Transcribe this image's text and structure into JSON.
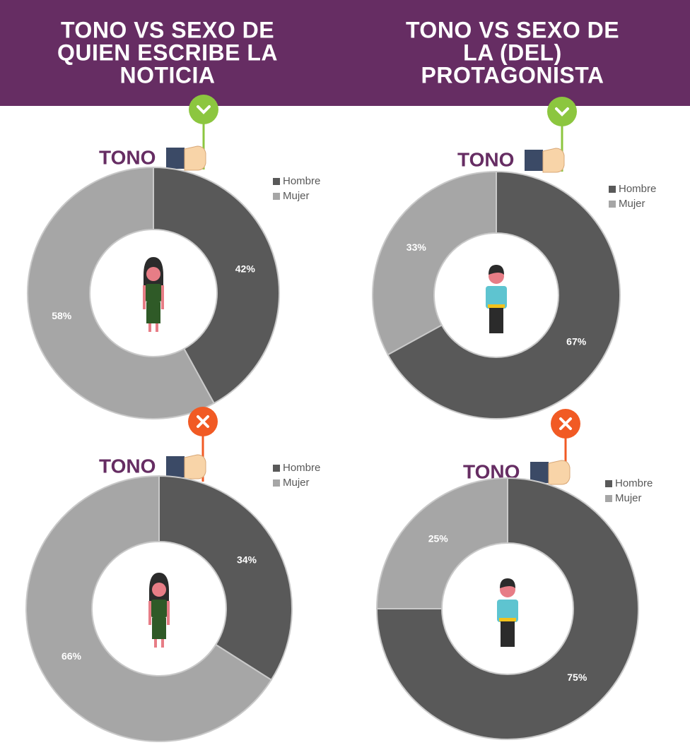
{
  "headers": [
    [
      "TONO VS SEXO DE",
      "QUIEN ESCRIBE LA",
      "NOTICIA"
    ],
    [
      "TONO VS SEXO DE",
      "LA (DEL)",
      "PROTAGONISTA"
    ]
  ],
  "chart_data": [
    {
      "type": "donut",
      "label": "TONO",
      "categories": [
        "Hombre",
        "Mujer"
      ],
      "values": [
        42,
        58
      ],
      "value_labels": [
        "42%",
        "58%"
      ],
      "colors": [
        "#595959",
        "#a6a6a6"
      ]
    },
    {
      "type": "donut",
      "label": "TONO",
      "categories": [
        "Hombre",
        "Mujer"
      ],
      "values": [
        67,
        33
      ],
      "value_labels": [
        "67%",
        "33%"
      ],
      "colors": [
        "#595959",
        "#a6a6a6"
      ]
    },
    {
      "type": "donut",
      "label": "TONO",
      "categories": [
        "Hombre",
        "Mujer"
      ],
      "values": [
        34,
        66
      ],
      "value_labels": [
        "34%",
        "66%"
      ],
      "colors": [
        "#595959",
        "#a6a6a6"
      ]
    },
    {
      "type": "donut",
      "label": "TONO",
      "categories": [
        "Hombre",
        "Mujer"
      ],
      "values": [
        75,
        25
      ],
      "value_labels": [
        "75%",
        "25%"
      ],
      "colors": [
        "#595959",
        "#a6a6a6"
      ]
    }
  ]
}
